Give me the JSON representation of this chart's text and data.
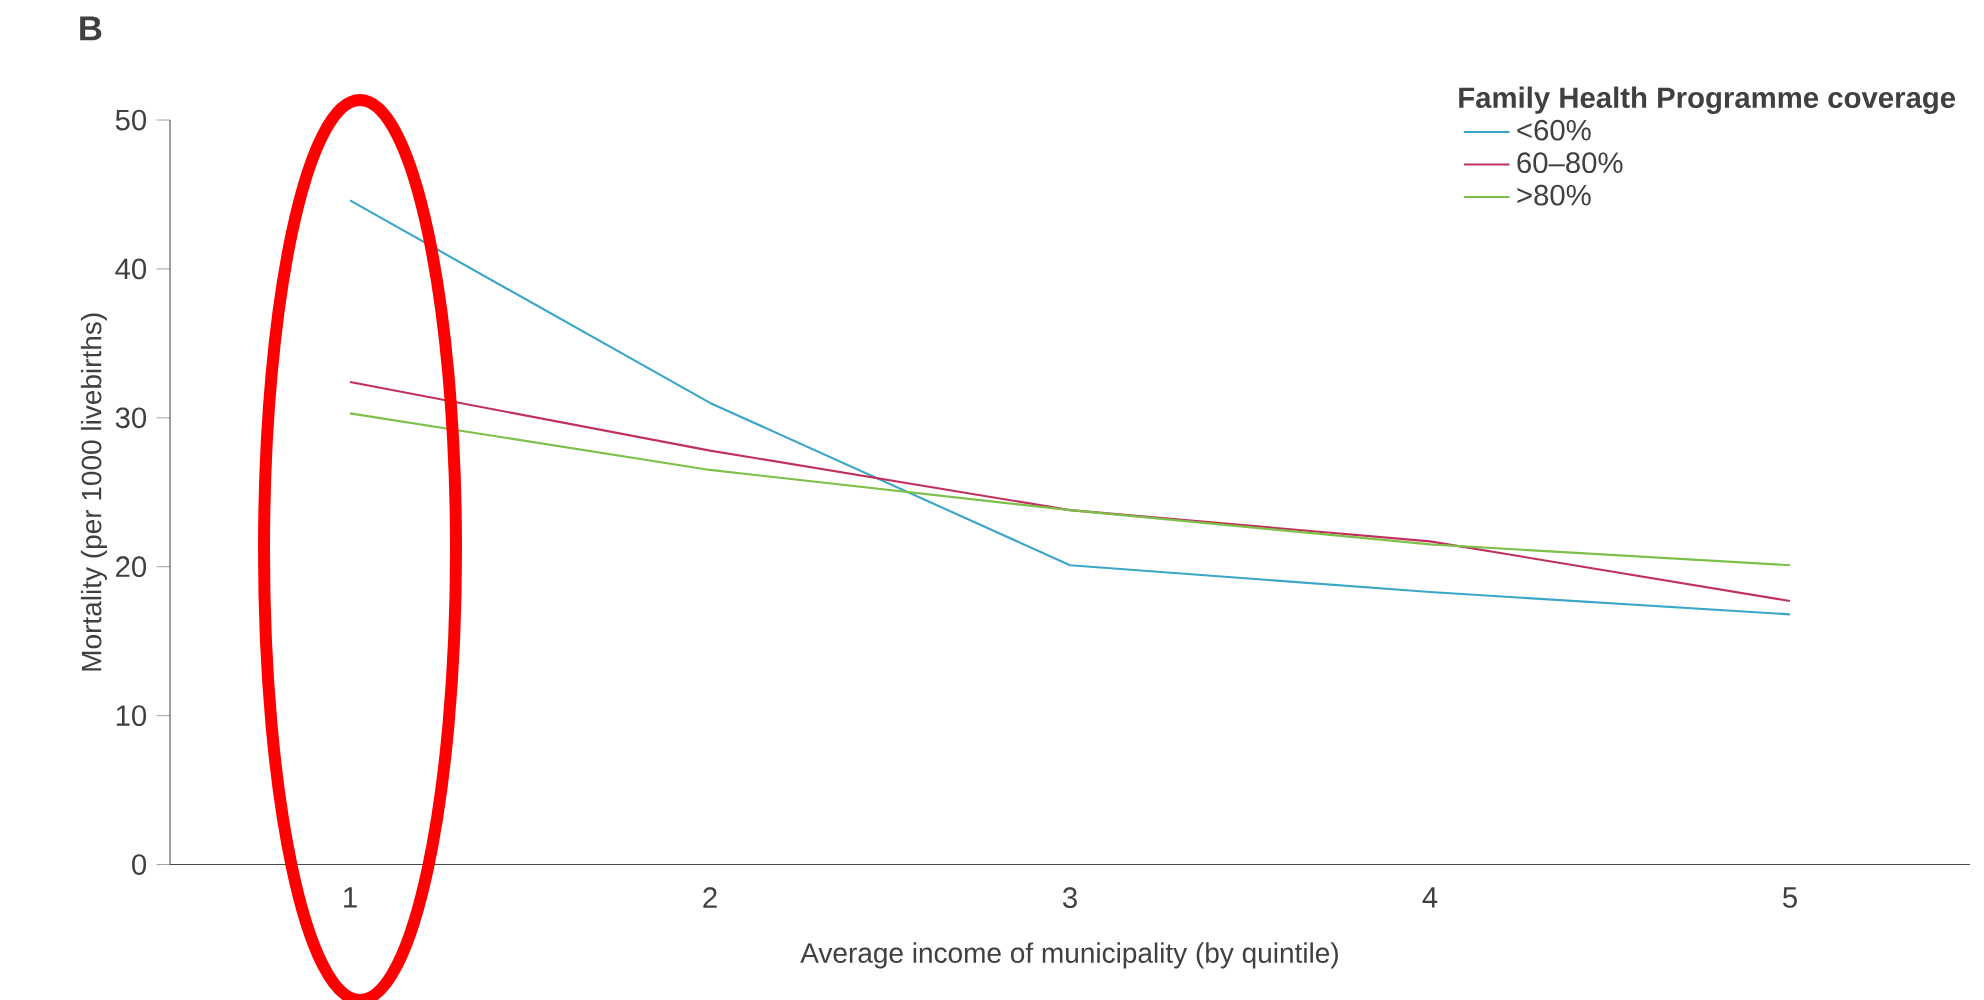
{
  "chart_data": {
    "type": "line",
    "title": "B",
    "xlabel": "Average income of municipality (by quintile)",
    "ylabel": "Mortality (per 1000 livebirths)",
    "legend_title": "Family Health Programme coverage",
    "legend": "top right",
    "categories": [
      "1",
      "2",
      "3",
      "4",
      "5"
    ],
    "series": [
      {
        "name": "<60%",
        "color": "#3aa6c8",
        "values": [
          44.6,
          31.0,
          20.1,
          18.3,
          16.8
        ]
      },
      {
        "name": "60–80%",
        "color": "#c0305a",
        "values": [
          32.4,
          27.8,
          23.8,
          21.7,
          17.7
        ]
      },
      {
        "name": ">80%",
        "color": "#7cc04a",
        "values": [
          30.3,
          26.5,
          23.8,
          21.5,
          20.1
        ]
      }
    ],
    "ylim": [
      0,
      50
    ],
    "yticks": [
      0,
      10,
      20,
      30,
      40,
      50
    ]
  }
}
